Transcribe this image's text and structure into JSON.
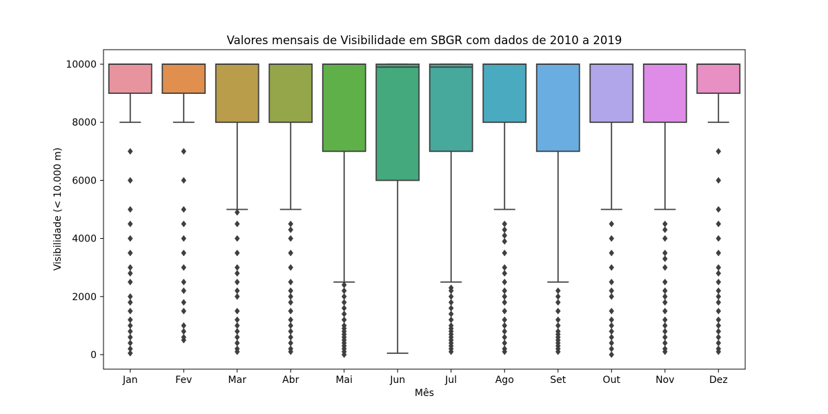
{
  "chart_data": {
    "type": "box",
    "title": "Valores mensais de Visibilidade em SBGR com dados de 2010 a 2019",
    "xlabel": "Mês",
    "ylabel": "Visibilidade (< 10.000 m)",
    "ylim": [
      -500,
      10500
    ],
    "yticks": [
      0,
      2000,
      4000,
      6000,
      8000,
      10000
    ],
    "grid": false,
    "legend": "none",
    "categories": [
      "Jan",
      "Fev",
      "Mar",
      "Abr",
      "Mai",
      "Jun",
      "Jul",
      "Ago",
      "Set",
      "Out",
      "Nov",
      "Dez"
    ],
    "series": [
      {
        "category": "Jan",
        "color": "#e8949f",
        "q1": 9000,
        "median": 10000,
        "q3": 10000,
        "whisker_low": 8000,
        "whisker_high": 10000,
        "outliers": [
          7000,
          6000,
          5000,
          4500,
          4000,
          3500,
          3000,
          2800,
          2500,
          2000,
          1800,
          1500,
          1200,
          1000,
          800,
          600,
          400,
          200,
          50
        ]
      },
      {
        "category": "Fev",
        "color": "#e08f4f",
        "q1": 9000,
        "median": 10000,
        "q3": 10000,
        "whisker_low": 8000,
        "whisker_high": 10000,
        "outliers": [
          7000,
          6000,
          5000,
          4500,
          4000,
          3500,
          3000,
          2500,
          2200,
          1800,
          1500,
          1000,
          800,
          600,
          500
        ]
      },
      {
        "category": "Mar",
        "color": "#b99d4a",
        "q1": 8000,
        "median": 10000,
        "q3": 10000,
        "whisker_low": 5000,
        "whisker_high": 10000,
        "outliers": [
          4900,
          4500,
          4000,
          3500,
          3000,
          2800,
          2500,
          2200,
          2000,
          1500,
          1200,
          1000,
          800,
          600,
          400,
          200,
          100
        ]
      },
      {
        "category": "Abr",
        "color": "#95a64a",
        "q1": 8000,
        "median": 10000,
        "q3": 10000,
        "whisker_low": 5000,
        "whisker_high": 10000,
        "outliers": [
          4500,
          4300,
          4000,
          3500,
          3000,
          2500,
          2200,
          2000,
          1800,
          1500,
          1200,
          1000,
          800,
          600,
          400,
          200,
          100
        ]
      },
      {
        "category": "Mai",
        "color": "#5fb049",
        "q1": 7000,
        "median": 10000,
        "q3": 10000,
        "whisker_low": 2500,
        "whisker_high": 10000,
        "outliers": [
          2400,
          2200,
          2000,
          1800,
          1600,
          1400,
          1200,
          1000,
          900,
          800,
          700,
          600,
          500,
          400,
          300,
          200,
          100,
          0
        ]
      },
      {
        "category": "Jun",
        "color": "#44aa7d",
        "q1": 6000,
        "median": 9900,
        "q3": 10000,
        "whisker_low": 50,
        "whisker_high": 10000,
        "outliers": []
      },
      {
        "category": "Jul",
        "color": "#46a99c",
        "q1": 7000,
        "median": 9900,
        "q3": 10000,
        "whisker_low": 2500,
        "whisker_high": 10000,
        "outliers": [
          2300,
          2200,
          2000,
          1800,
          1600,
          1400,
          1200,
          1000,
          900,
          800,
          700,
          600,
          500,
          400,
          300,
          200,
          100
        ]
      },
      {
        "category": "Ago",
        "color": "#4aaabf",
        "q1": 8000,
        "median": 10000,
        "q3": 10000,
        "whisker_low": 5000,
        "whisker_high": 10000,
        "outliers": [
          4500,
          4300,
          4100,
          3900,
          3500,
          3000,
          2800,
          2500,
          2200,
          2000,
          1800,
          1500,
          1200,
          1000,
          800,
          600,
          400,
          200,
          100
        ]
      },
      {
        "category": "Set",
        "color": "#6aade0",
        "q1": 7000,
        "median": 10000,
        "q3": 10000,
        "whisker_low": 2500,
        "whisker_high": 10000,
        "outliers": [
          2200,
          2000,
          1800,
          1500,
          1200,
          1000,
          800,
          700,
          600,
          500,
          400,
          300,
          200,
          100
        ]
      },
      {
        "category": "Out",
        "color": "#b2a6eb",
        "q1": 8000,
        "median": 10000,
        "q3": 10000,
        "whisker_low": 5000,
        "whisker_high": 10000,
        "outliers": [
          4500,
          4000,
          3500,
          3000,
          2500,
          2200,
          2000,
          1500,
          1200,
          1000,
          800,
          600,
          400,
          200,
          0
        ]
      },
      {
        "category": "Nov",
        "color": "#de8ce8",
        "q1": 8000,
        "median": 10000,
        "q3": 10000,
        "whisker_low": 5000,
        "whisker_high": 10000,
        "outliers": [
          4500,
          4300,
          4000,
          3500,
          3300,
          3000,
          2500,
          2200,
          2000,
          1800,
          1500,
          1200,
          1000,
          800,
          600,
          400,
          200,
          100
        ]
      },
      {
        "category": "Dez",
        "color": "#e88fc4",
        "q1": 9000,
        "median": 10000,
        "q3": 10000,
        "whisker_low": 8000,
        "whisker_high": 10000,
        "outliers": [
          7000,
          6000,
          5000,
          4500,
          4000,
          3500,
          3000,
          2800,
          2500,
          2200,
          2000,
          1800,
          1500,
          1200,
          1000,
          800,
          600,
          400,
          200,
          100
        ]
      }
    ]
  }
}
